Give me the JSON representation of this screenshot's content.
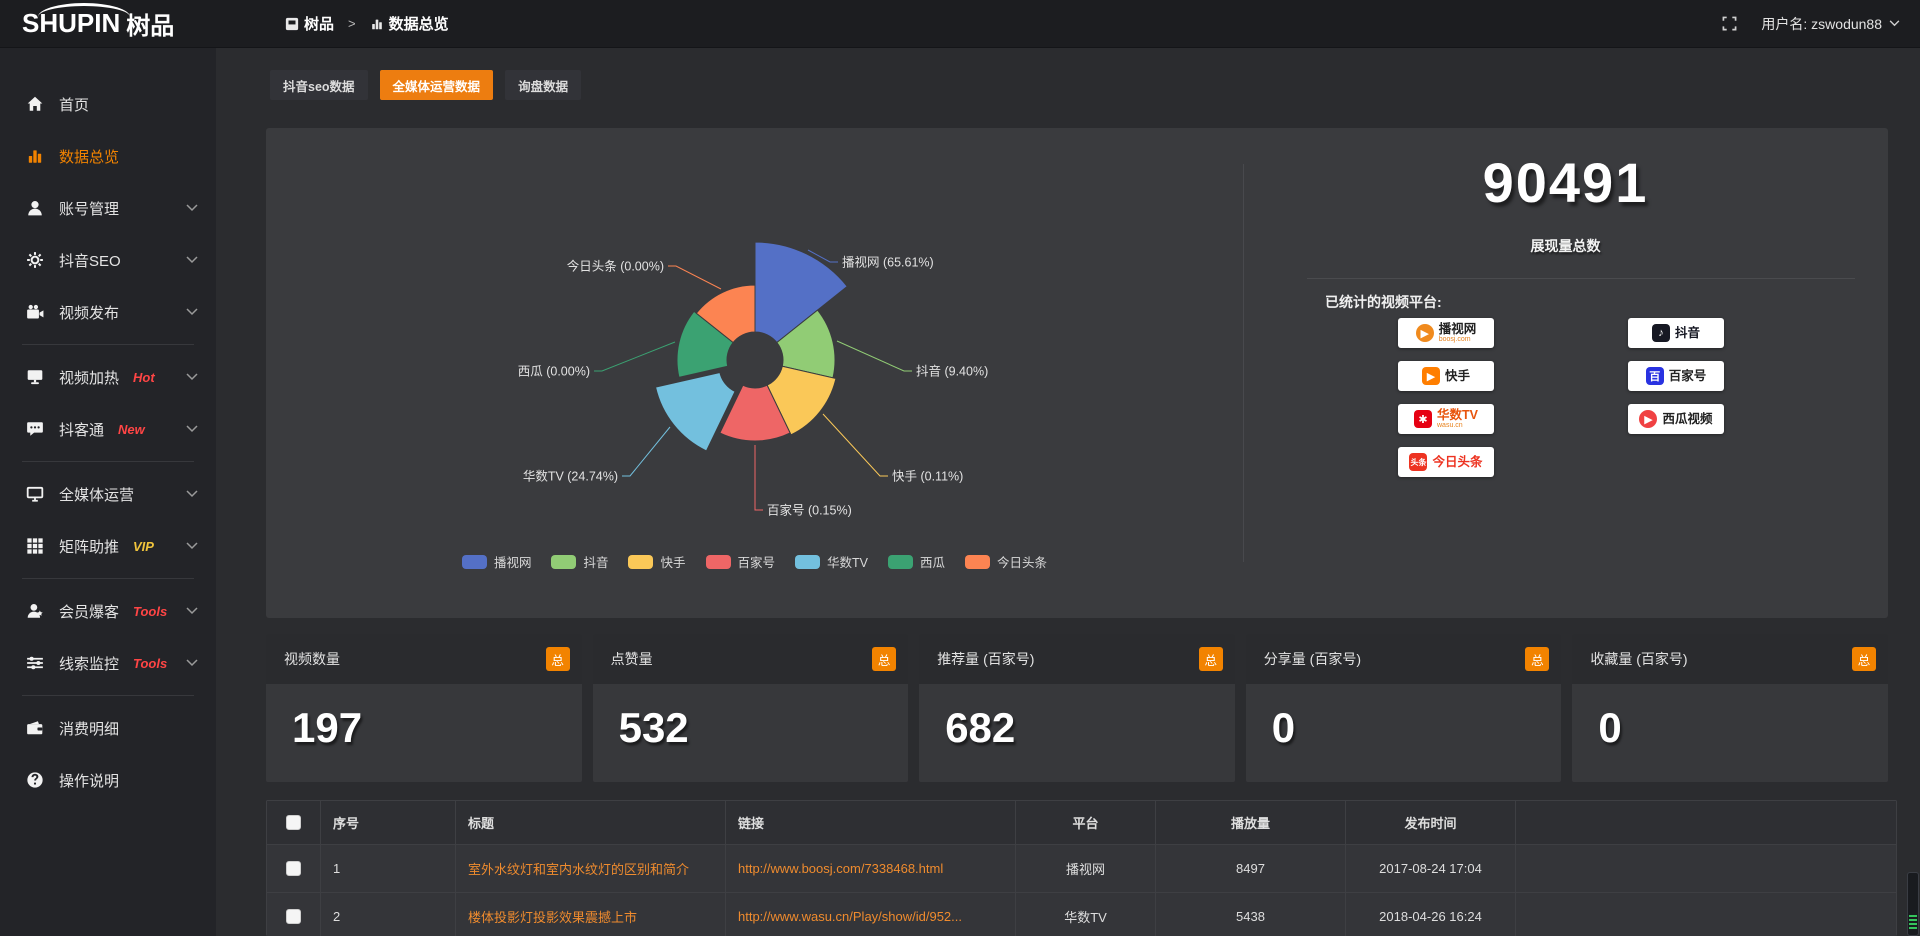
{
  "header": {
    "logo_en": "SHUPIN",
    "logo_cn": "树品",
    "breadcrumb": {
      "root": "树品",
      "sep": ">",
      "current": "数据总览"
    },
    "username": "用户名: zswodun88"
  },
  "sidebar": {
    "items": [
      {
        "label": "首页",
        "icon": "home"
      },
      {
        "label": "数据总览",
        "icon": "bar-chart",
        "active": true
      },
      {
        "label": "账号管理",
        "icon": "user",
        "chevron": true
      },
      {
        "label": "抖音SEO",
        "icon": "gear",
        "chevron": true
      },
      {
        "label": "视频发布",
        "icon": "video-camera",
        "chevron": true
      },
      {
        "label": "视频加热",
        "icon": "screen",
        "chevron": true,
        "tag": "Hot",
        "tag_color": "#ff4545"
      },
      {
        "label": "抖客通",
        "icon": "chat",
        "chevron": true,
        "tag": "New",
        "tag_color": "#ff4545"
      },
      {
        "label": "全媒体运营",
        "icon": "monitor",
        "chevron": true
      },
      {
        "label": "矩阵助推",
        "icon": "grid",
        "chevron": true,
        "tag": "VIP",
        "tag_color": "#f0c43c"
      },
      {
        "label": "会员爆客",
        "icon": "member",
        "chevron": true,
        "tag": "Tools",
        "tag_color": "#ff4545"
      },
      {
        "label": "线索监控",
        "icon": "sliders",
        "chevron": true,
        "tag": "Tools",
        "tag_color": "#ff4545"
      },
      {
        "label": "消费明细",
        "icon": "wallet"
      },
      {
        "label": "操作说明",
        "icon": "help"
      }
    ]
  },
  "tabs": [
    {
      "label": "抖音seo数据",
      "active": false
    },
    {
      "label": "全媒体运营数据",
      "active": true
    },
    {
      "label": "询盘数据",
      "active": false
    }
  ],
  "chart_data": {
    "type": "pie",
    "rose": true,
    "legend_position": "bottom",
    "series": [
      {
        "name": "播视网",
        "pct": 65.61,
        "label": "播视网 (65.61%)",
        "color": "#5470c6"
      },
      {
        "name": "抖音",
        "pct": 9.4,
        "label": "抖音 (9.40%)",
        "color": "#91cc75"
      },
      {
        "name": "快手",
        "pct": 0.11,
        "label": "快手 (0.11%)",
        "color": "#fac858"
      },
      {
        "name": "百家号",
        "pct": 0.15,
        "label": "百家号 (0.15%)",
        "color": "#ee6666"
      },
      {
        "name": "华数TV",
        "pct": 24.74,
        "label": "华数TV (24.74%)",
        "color": "#73c0de",
        "selected": true
      },
      {
        "name": "西瓜",
        "pct": 0.0,
        "label": "西瓜 (0.00%)",
        "color": "#3ba272"
      },
      {
        "name": "今日头条",
        "pct": 0.0,
        "label": "今日头条 (0.00%)",
        "color": "#fc8452"
      }
    ],
    "legend": [
      "播视网",
      "抖音",
      "快手",
      "百家号",
      "华数TV",
      "西瓜",
      "今日头条"
    ]
  },
  "summary": {
    "total_value": "90491",
    "total_label": "展现量总数",
    "platforms_label": "已统计的视频平台:",
    "badges_left": [
      {
        "name": "播视网",
        "sub": "boosj.com",
        "mark": "▶",
        "mark_color": "#f08a1d",
        "text_color": "#222222",
        "round": true
      },
      {
        "name": "快手",
        "sub": "",
        "mark": "▶",
        "mark_color": "#ff7e00",
        "text_color": "#222222"
      },
      {
        "name": "华数TV",
        "sub": "wasu.cn",
        "mark": "✱",
        "mark_color": "#e60012",
        "text_color": "#e8540c"
      },
      {
        "name": "今日头条",
        "sub": "",
        "mark": "头条",
        "mark_color": "#ed3321",
        "text_color": "#ed3321"
      }
    ],
    "badges_right": [
      {
        "name": "抖音",
        "sub": "",
        "mark": "♪",
        "mark_color": "#161823",
        "text_color": "#161823"
      },
      {
        "name": "百家号",
        "sub": "",
        "mark": "百",
        "mark_color": "#2932e1",
        "text_color": "#222222"
      },
      {
        "name": "西瓜视频",
        "sub": "",
        "mark": "▶",
        "mark_color": "#f04142",
        "text_color": "#222222",
        "round": true
      }
    ]
  },
  "stat_cards": [
    {
      "label": "视频数量",
      "badge": "总",
      "value": "197"
    },
    {
      "label": "点赞量",
      "badge": "总",
      "value": "532"
    },
    {
      "label": "推荐量 (百家号)",
      "badge": "总",
      "value": "682"
    },
    {
      "label": "分享量 (百家号)",
      "badge": "总",
      "value": "0"
    },
    {
      "label": "收藏量 (百家号)",
      "badge": "总",
      "value": "0"
    }
  ],
  "table": {
    "headers": [
      "序号",
      "标题",
      "链接",
      "平台",
      "播放量",
      "发布时间"
    ],
    "rows": [
      {
        "no": "1",
        "title": "室外水纹灯和室内水纹灯的区别和简介",
        "link": "http://www.boosj.com/7338468.html",
        "platform": "播视网",
        "plays": "8497",
        "time": "2017-08-24 17:04"
      },
      {
        "no": "2",
        "title": "楼体投影灯投影效果震撼上市",
        "link": "http://www.wasu.cn/Play/show/id/952...",
        "platform": "华数TV",
        "plays": "5438",
        "time": "2018-04-26 16:24"
      }
    ]
  }
}
